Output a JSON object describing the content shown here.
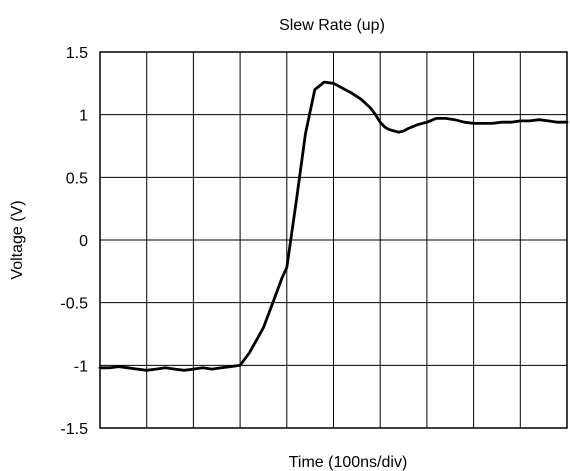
{
  "chart_data": {
    "type": "line",
    "title": "Slew Rate (up)",
    "xlabel": "Time (100ns/div)",
    "ylabel": "Voltage (V)",
    "ylim": [
      -1.5,
      1.5
    ],
    "yticks": [
      "1.5",
      "1",
      "0.5",
      "0",
      "-0.5",
      "-1",
      "-1.5"
    ],
    "xlim": [
      0,
      10
    ],
    "x_divisions": 10,
    "grid": true,
    "series": [
      {
        "x": [
          0.0,
          0.2,
          0.4,
          0.6,
          0.8,
          1.0,
          1.2,
          1.4,
          1.6,
          1.8,
          2.0,
          2.2,
          2.4,
          2.6,
          2.8,
          3.0,
          3.2,
          3.35,
          3.5,
          3.6,
          3.7,
          3.8,
          3.9,
          4.0,
          4.2,
          4.4,
          4.6,
          4.8,
          5.0,
          5.2,
          5.4,
          5.6,
          5.8,
          5.9,
          6.0,
          6.1,
          6.2,
          6.3,
          6.4,
          6.5,
          6.6,
          6.8,
          7.0,
          7.2,
          7.4,
          7.6,
          7.8,
          8.0,
          8.2,
          8.4,
          8.6,
          8.8,
          9.0,
          9.2,
          9.4,
          9.6,
          9.8,
          10.0
        ],
        "y": [
          -1.02,
          -1.02,
          -1.01,
          -1.02,
          -1.03,
          -1.04,
          -1.03,
          -1.02,
          -1.03,
          -1.04,
          -1.03,
          -1.02,
          -1.03,
          -1.02,
          -1.01,
          -1.0,
          -0.9,
          -0.8,
          -0.7,
          -0.6,
          -0.5,
          -0.4,
          -0.3,
          -0.22,
          0.3,
          0.85,
          1.2,
          1.26,
          1.25,
          1.21,
          1.17,
          1.12,
          1.05,
          1.0,
          0.94,
          0.9,
          0.88,
          0.87,
          0.86,
          0.87,
          0.89,
          0.92,
          0.94,
          0.97,
          0.97,
          0.96,
          0.94,
          0.93,
          0.93,
          0.93,
          0.94,
          0.94,
          0.95,
          0.95,
          0.96,
          0.95,
          0.94,
          0.94
        ]
      }
    ]
  }
}
